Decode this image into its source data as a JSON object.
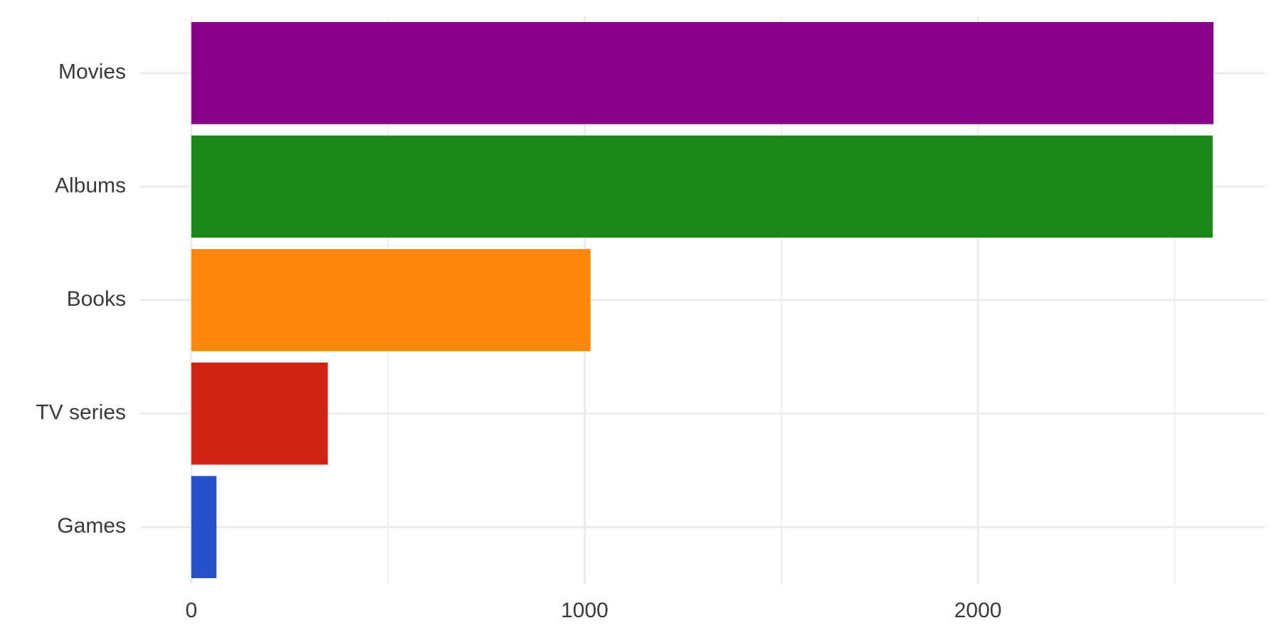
{
  "chart_data": {
    "type": "bar",
    "orientation": "horizontal",
    "categories": [
      "Movies",
      "Albums",
      "Books",
      "TV series",
      "Games"
    ],
    "values": [
      2599,
      2597,
      1015,
      347,
      64
    ],
    "colors": [
      "#870087",
      "#1a8816",
      "#ff870b",
      "#d12314",
      "#2650c6"
    ],
    "xlim": [
      -130,
      2729
    ],
    "xticks": [
      0,
      1000,
      2000
    ],
    "x_minor_ticks": [
      500,
      1500,
      2500
    ],
    "grid": true
  }
}
